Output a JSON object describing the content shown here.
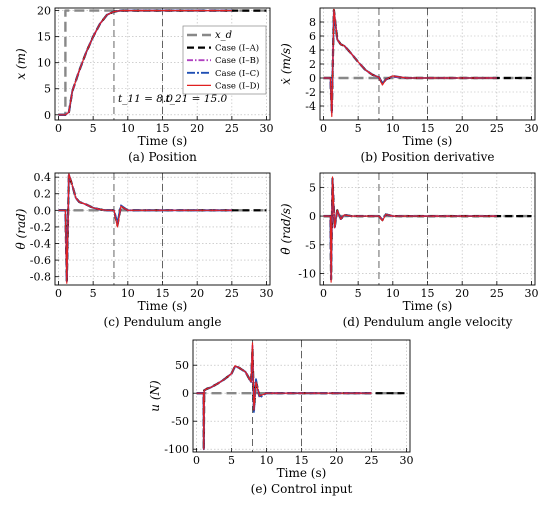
{
  "chart_data": [
    {
      "type": "line",
      "caption": "(a) Position",
      "xlabel": "Time (s)",
      "ylabel": "x (m)",
      "xlim": [
        -0.5,
        30.5
      ],
      "ylim": [
        -1,
        20.5
      ],
      "xticks": [
        0,
        5,
        10,
        15,
        20,
        25,
        30
      ],
      "yticks": [
        0,
        5,
        10,
        15,
        20
      ],
      "grid": true,
      "legend": {
        "position": "right",
        "entries": [
          "x_d",
          "Case (I–A)",
          "Case (I–B)",
          "Case (I–C)",
          "Case (I–D)"
        ]
      },
      "annotations": [
        "t_11 = 8.0",
        "t_21 = 15.0"
      ],
      "vlines": [
        8.0,
        15.0
      ],
      "series": [
        {
          "name": "x_d",
          "color": "#888888",
          "x": [
            0,
            1,
            1,
            30
          ],
          "y": [
            0,
            0,
            20,
            20
          ]
        },
        {
          "name": "Case (I–A)",
          "color": "#000000",
          "x": [
            0,
            1,
            1.5,
            2,
            3,
            4,
            5,
            6,
            7,
            8,
            9,
            10,
            12,
            15,
            30
          ],
          "y": [
            0,
            0,
            0.5,
            4.5,
            8.5,
            12,
            15,
            17.5,
            19.2,
            19.8,
            20,
            20,
            20,
            20,
            20
          ]
        },
        {
          "name": "Case (I–B)",
          "color": "#b040c0",
          "x": [
            0,
            1,
            1.5,
            2,
            3,
            4,
            5,
            6,
            7,
            8,
            9,
            10,
            12,
            15,
            25
          ],
          "y": [
            0,
            0,
            0.5,
            4.5,
            8.5,
            12,
            15,
            17.5,
            19.2,
            19.8,
            20,
            20,
            20,
            20,
            20
          ]
        },
        {
          "name": "Case (I–C)",
          "color": "#1f4fb4",
          "x": [
            0,
            1,
            1.5,
            2,
            3,
            4,
            5,
            6,
            7,
            8,
            9,
            10,
            12,
            15,
            25
          ],
          "y": [
            0,
            0,
            0.5,
            4.5,
            8.5,
            12,
            15,
            17.5,
            19.2,
            19.8,
            20,
            20,
            20,
            20,
            20
          ]
        },
        {
          "name": "Case (I–D)",
          "color": "#e02020",
          "x": [
            0,
            1,
            1.5,
            2,
            3,
            4,
            5,
            6,
            7,
            8,
            9,
            10,
            12,
            15,
            25
          ],
          "y": [
            0,
            0,
            0.5,
            4.5,
            8.5,
            12,
            15,
            17.5,
            19.2,
            19.8,
            20,
            20,
            20,
            20,
            20
          ]
        }
      ]
    },
    {
      "type": "line",
      "caption": "(b) Position derivative",
      "xlabel": "Time (s)",
      "ylabel": "ẋ (m/s)",
      "xlim": [
        -0.5,
        30.5
      ],
      "ylim": [
        -6,
        10
      ],
      "xticks": [
        0,
        5,
        10,
        15,
        20,
        25,
        30
      ],
      "yticks": [
        -4,
        -2,
        0,
        2,
        4,
        6,
        8
      ],
      "grid": true,
      "vlines": [
        8.0,
        15.0
      ],
      "series": [
        {
          "name": "x_d",
          "color": "#888888",
          "x": [
            0,
            30
          ],
          "y": [
            0,
            0
          ]
        },
        {
          "name": "Case (I–A)",
          "color": "#000000",
          "x": [
            0,
            1,
            1.2,
            1.5,
            2,
            2.5,
            3,
            4,
            5,
            6,
            7,
            8,
            8.5,
            9,
            10,
            12,
            30
          ],
          "y": [
            0,
            0,
            -5,
            9.7,
            5.5,
            4.8,
            4.6,
            3.5,
            2.3,
            1.2,
            0.5,
            0.1,
            -0.8,
            -0.2,
            0.2,
            0,
            0
          ]
        },
        {
          "name": "Case (I–B)",
          "color": "#b040c0",
          "x": [
            0,
            1,
            1.2,
            1.5,
            2,
            2.5,
            3,
            4,
            5,
            6,
            7,
            8,
            8.5,
            9,
            10,
            12,
            25
          ],
          "y": [
            0,
            0,
            -5,
            9.7,
            5.5,
            4.8,
            4.6,
            3.5,
            2.3,
            1.2,
            0.5,
            0.1,
            -0.8,
            -0.2,
            0.2,
            0,
            0
          ]
        },
        {
          "name": "Case (I–C)",
          "color": "#1f4fb4",
          "x": [
            0,
            1,
            1.2,
            1.5,
            2,
            2.5,
            3,
            4,
            5,
            6,
            7,
            8,
            8.5,
            9,
            10,
            12,
            25
          ],
          "y": [
            0,
            0,
            -5,
            9.6,
            5.5,
            4.8,
            4.6,
            3.5,
            2.3,
            1.2,
            0.5,
            0.1,
            -0.8,
            -0.2,
            0.3,
            0,
            0
          ]
        },
        {
          "name": "Case (I–D)",
          "color": "#e02020",
          "x": [
            0,
            1,
            1.2,
            1.5,
            2,
            2.5,
            3,
            4,
            5,
            6,
            7,
            8,
            8.5,
            9,
            10,
            12,
            25
          ],
          "y": [
            0,
            0,
            -5.5,
            9.8,
            5.5,
            4.8,
            4.6,
            3.5,
            2.3,
            1.2,
            0.5,
            0.1,
            -1.0,
            -0.2,
            0.3,
            0,
            0
          ]
        }
      ]
    },
    {
      "type": "line",
      "caption": "(c) Pendulum angle",
      "xlabel": "Time (s)",
      "ylabel": "θ (rad)",
      "xlim": [
        -0.5,
        30.5
      ],
      "ylim": [
        -0.9,
        0.45
      ],
      "xticks": [
        0,
        5,
        10,
        15,
        20,
        25,
        30
      ],
      "yticks": [
        -0.8,
        -0.6,
        -0.4,
        -0.2,
        0.0,
        0.2,
        0.4
      ],
      "grid": true,
      "vlines": [
        8.0,
        15.0
      ],
      "series": [
        {
          "name": "x_d",
          "color": "#888888",
          "x": [
            0,
            30
          ],
          "y": [
            0,
            0
          ]
        },
        {
          "name": "Case (I–A)",
          "color": "#000000",
          "x": [
            0,
            1,
            1.2,
            1.5,
            2,
            2.5,
            3,
            4,
            5,
            6,
            7,
            8,
            8.5,
            9,
            10,
            12,
            30
          ],
          "y": [
            0,
            0,
            -0.85,
            0.43,
            0.3,
            0.15,
            0.1,
            0.07,
            0.03,
            0.01,
            0,
            0,
            -0.18,
            0.05,
            0,
            0,
            0
          ]
        },
        {
          "name": "Case (I–B)",
          "color": "#b040c0",
          "x": [
            0,
            1,
            1.2,
            1.5,
            2,
            2.5,
            3,
            4,
            5,
            6,
            7,
            8,
            8.5,
            9,
            10,
            12,
            25
          ],
          "y": [
            0,
            0,
            -0.85,
            0.43,
            0.3,
            0.15,
            0.1,
            0.07,
            0.03,
            0.01,
            0,
            0,
            -0.18,
            0.05,
            0,
            0,
            0
          ]
        },
        {
          "name": "Case (I–C)",
          "color": "#1f4fb4",
          "x": [
            0,
            1,
            1.2,
            1.5,
            2,
            2.5,
            3,
            4,
            5,
            6,
            7,
            8,
            8.5,
            9,
            10,
            12,
            25
          ],
          "y": [
            0,
            0,
            -0.85,
            0.43,
            0.3,
            0.15,
            0.1,
            0.07,
            0.03,
            0.01,
            0,
            0,
            -0.15,
            0.06,
            0,
            0,
            0
          ]
        },
        {
          "name": "Case (I–D)",
          "color": "#e02020",
          "x": [
            0,
            1,
            1.2,
            1.5,
            2,
            2.5,
            3,
            4,
            5,
            6,
            7,
            8,
            8.5,
            9,
            10,
            12,
            25
          ],
          "y": [
            0,
            0,
            -0.88,
            0.44,
            0.3,
            0.15,
            0.1,
            0.07,
            0.03,
            0.01,
            0,
            0,
            -0.2,
            0.05,
            0,
            0,
            0
          ]
        }
      ]
    },
    {
      "type": "line",
      "caption": "(d) Pendulum angle velocity",
      "xlabel": "Time (s)",
      "ylabel": "θ̇ (rad/s)",
      "xlim": [
        -0.5,
        30.5
      ],
      "ylim": [
        -12,
        7.5
      ],
      "xticks": [
        0,
        5,
        10,
        15,
        20,
        25,
        30
      ],
      "yticks": [
        -10,
        -5,
        0,
        5
      ],
      "grid": true,
      "vlines": [
        8.0,
        15.0
      ],
      "series": [
        {
          "name": "x_d",
          "color": "#888888",
          "x": [
            0,
            30
          ],
          "y": [
            0,
            0
          ]
        },
        {
          "name": "Case (I–A)",
          "color": "#000000",
          "x": [
            0,
            1,
            1.1,
            1.3,
            1.6,
            2,
            2.5,
            3,
            4,
            8,
            8.5,
            9,
            10,
            30
          ],
          "y": [
            0,
            0,
            -11,
            6.5,
            -2,
            1,
            -0.5,
            0.2,
            0,
            0,
            -0.7,
            0.3,
            0,
            0
          ]
        },
        {
          "name": "Case (I–B)",
          "color": "#b040c0",
          "x": [
            0,
            1,
            1.1,
            1.3,
            1.6,
            2,
            2.5,
            3,
            4,
            8,
            8.5,
            9,
            10,
            25
          ],
          "y": [
            0,
            0,
            -11,
            6.5,
            -2,
            1,
            -0.5,
            0.2,
            0,
            0,
            -0.7,
            0.3,
            0,
            0
          ]
        },
        {
          "name": "Case (I–C)",
          "color": "#1f4fb4",
          "x": [
            0,
            1,
            1.1,
            1.3,
            1.6,
            2,
            2.5,
            3,
            4,
            8,
            8.5,
            9,
            10,
            25
          ],
          "y": [
            0,
            0,
            -11,
            6.5,
            -2,
            1,
            -0.5,
            0.2,
            0,
            0,
            -0.6,
            0.3,
            0,
            0
          ]
        },
        {
          "name": "Case (I–D)",
          "color": "#e02020",
          "x": [
            0,
            1,
            1.1,
            1.3,
            1.6,
            2,
            2.5,
            3,
            4,
            8,
            8.5,
            9,
            10,
            25
          ],
          "y": [
            0,
            0,
            -11.5,
            6.8,
            -2,
            1,
            -0.5,
            0.2,
            0,
            0,
            -0.8,
            0.3,
            0,
            0
          ]
        }
      ]
    },
    {
      "type": "line",
      "caption": "(e) Control input",
      "xlabel": "Time (s)",
      "ylabel": "u (N)",
      "xlim": [
        -0.5,
        30.5
      ],
      "ylim": [
        -105,
        95
      ],
      "xticks": [
        0,
        5,
        10,
        15,
        20,
        25,
        30
      ],
      "yticks": [
        -100,
        -50,
        0,
        50
      ],
      "grid": true,
      "vlines": [
        8.0,
        15.0
      ],
      "series": [
        {
          "name": "x_d",
          "color": "#888888",
          "x": [
            0,
            30
          ],
          "y": [
            0,
            0
          ]
        },
        {
          "name": "Case (I–A)",
          "color": "#000000",
          "x": [
            0,
            1,
            1.05,
            1.1,
            1.5,
            2,
            3,
            4,
            5,
            5.5,
            6,
            7,
            7.8,
            8,
            8.2,
            8.5,
            9,
            10,
            12,
            30
          ],
          "y": [
            0,
            0,
            -100,
            5,
            8,
            10,
            17,
            25,
            35,
            48,
            46,
            38,
            20,
            80,
            -30,
            20,
            -5,
            0,
            0,
            0
          ]
        },
        {
          "name": "Case (I–B)",
          "color": "#b040c0",
          "x": [
            0,
            1,
            1.05,
            1.1,
            1.5,
            2,
            3,
            4,
            5,
            5.5,
            6,
            7,
            7.8,
            8,
            8.2,
            8.5,
            9,
            10,
            12,
            25
          ],
          "y": [
            0,
            0,
            -100,
            5,
            8,
            10,
            17,
            25,
            35,
            48,
            46,
            38,
            20,
            85,
            -30,
            20,
            -5,
            0,
            0,
            0
          ]
        },
        {
          "name": "Case (I–C)",
          "color": "#1f4fb4",
          "x": [
            0,
            1,
            1.05,
            1.1,
            1.5,
            2,
            3,
            4,
            5,
            5.5,
            6,
            7,
            7.8,
            8,
            8.2,
            8.5,
            9,
            10,
            12,
            25
          ],
          "y": [
            0,
            0,
            -100,
            5,
            8,
            10,
            17,
            25,
            35,
            48,
            46,
            38,
            20,
            75,
            -35,
            25,
            -8,
            0,
            0,
            0
          ]
        },
        {
          "name": "Case (I–D)",
          "color": "#e02020",
          "x": [
            0,
            1,
            1.05,
            1.1,
            1.5,
            2,
            3,
            4,
            5,
            5.5,
            6,
            7,
            7.8,
            8,
            8.2,
            8.5,
            9,
            10,
            12,
            25
          ],
          "y": [
            0,
            0,
            -100,
            5,
            8,
            10,
            17,
            25,
            35,
            49,
            46,
            38,
            20,
            90,
            -30,
            20,
            -5,
            0,
            0,
            0
          ]
        }
      ]
    }
  ],
  "series_styles": {
    "x_d": {
      "dash": "10 5",
      "width": 2.4
    },
    "Case (I–A)": {
      "dash": "7 4",
      "width": 2.2
    },
    "Case (I–B)": {
      "dash": "6 2 1.5 2",
      "width": 1.8
    },
    "Case (I–C)": {
      "dash": "8 2 2 2",
      "width": 1.8
    },
    "Case (I–D)": {
      "dash": "",
      "width": 1.2
    }
  }
}
